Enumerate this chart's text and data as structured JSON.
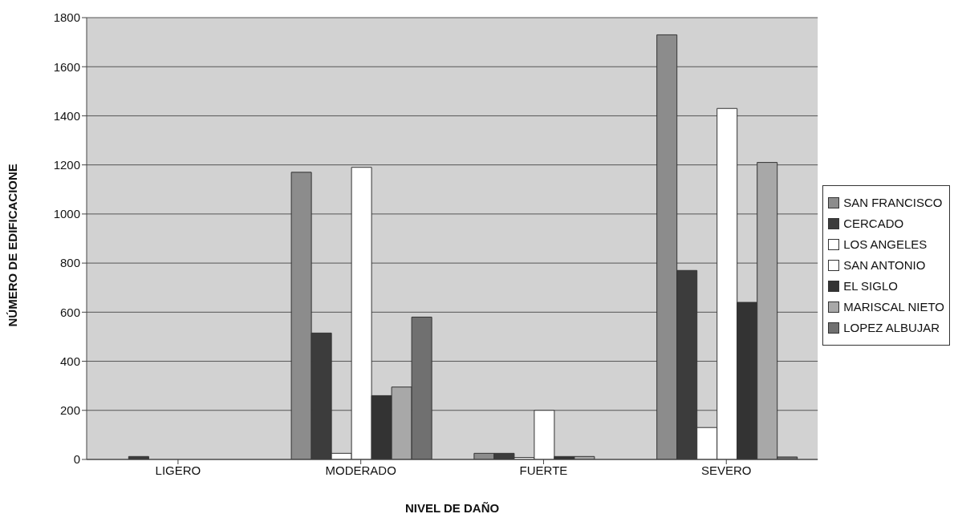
{
  "chart_data": {
    "type": "bar",
    "xlabel": "NIVEL DE DAÑO",
    "ylabel": "NÚMERO DE EDIFICACIONE",
    "categories": [
      "LIGERO",
      "MODERADO",
      "FUERTE",
      "SEVERO"
    ],
    "series": [
      {
        "name": "SAN FRANCISCO",
        "color": "#8c8c8c",
        "values": [
          0,
          1170,
          25,
          1730
        ]
      },
      {
        "name": "CERCADO",
        "color": "#3c3c3c",
        "values": [
          12,
          515,
          25,
          770
        ]
      },
      {
        "name": "LOS ANGELES",
        "color": "#ffffff",
        "values": [
          0,
          25,
          8,
          130
        ]
      },
      {
        "name": "SAN ANTONIO",
        "color": "#ffffff",
        "values": [
          0,
          1190,
          200,
          1430
        ]
      },
      {
        "name": "EL SIGLO",
        "color": "#333333",
        "values": [
          0,
          260,
          12,
          640
        ]
      },
      {
        "name": "MARISCAL NIETO",
        "color": "#a8a8a8",
        "values": [
          0,
          295,
          12,
          1210
        ]
      },
      {
        "name": "LOPEZ ALBUJAR",
        "color": "#707070",
        "values": [
          0,
          580,
          0,
          10
        ]
      }
    ],
    "ylim": [
      0,
      1800
    ],
    "yticks": [
      0,
      200,
      400,
      600,
      800,
      1000,
      1200,
      1400,
      1600,
      1800
    ],
    "grid": "y",
    "legend": "right"
  }
}
